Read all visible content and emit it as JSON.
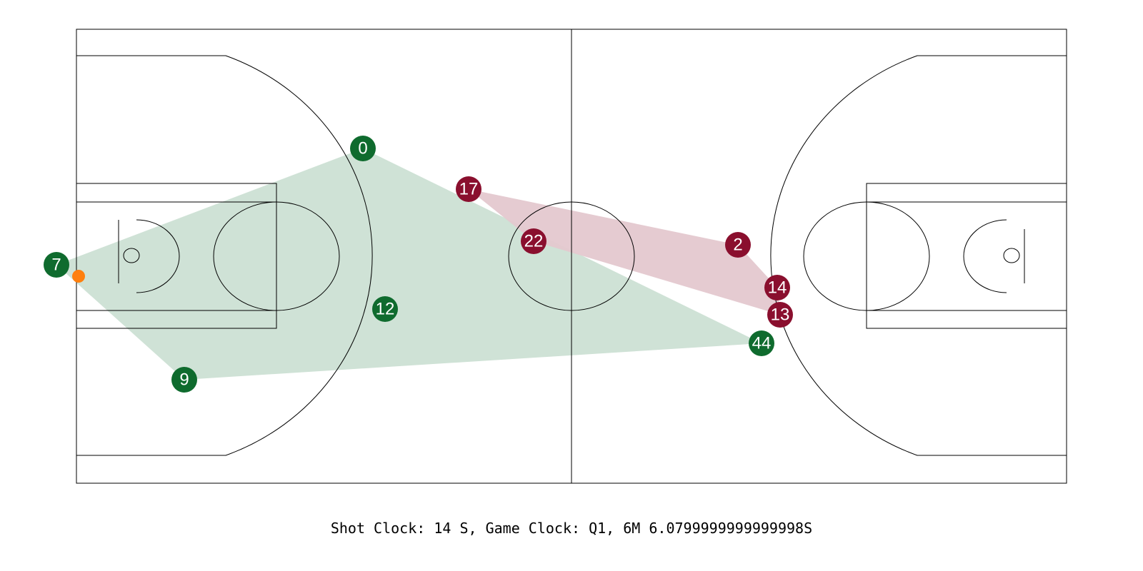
{
  "caption": "Shot Clock: 14 S, Game Clock: Q1, 6M 6.0799999999999998S",
  "colors": {
    "home": "#0f6b2e",
    "away": "#8a0f2e",
    "home_fill": "#cfe2d6",
    "away_fill": "#e4c8cf",
    "ball": "#ff7f0e"
  },
  "home_team": {
    "players": [
      {
        "number": "0"
      },
      {
        "number": "7"
      },
      {
        "number": "9"
      },
      {
        "number": "12"
      },
      {
        "number": "44"
      }
    ]
  },
  "away_team": {
    "players": [
      {
        "number": "17"
      },
      {
        "number": "22"
      },
      {
        "number": "2"
      },
      {
        "number": "14"
      },
      {
        "number": "13"
      }
    ]
  }
}
